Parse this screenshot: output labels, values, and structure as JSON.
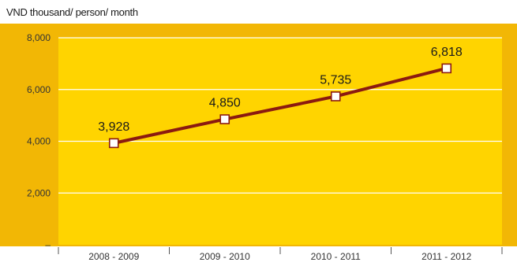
{
  "chart_data": {
    "type": "line",
    "unit_label": "VND thousand/ person/ month",
    "categories": [
      "2008 - 2009",
      "2009 - 2010",
      "2010 - 2011",
      "2011 - 2012"
    ],
    "series": [
      {
        "values": [
          3928,
          4850,
          5735,
          6818
        ],
        "data_labels": [
          "3,928",
          "4,850",
          "5,735",
          "6,818"
        ]
      }
    ],
    "ylim": [
      0,
      8000
    ],
    "y_ticks": [
      0,
      2000,
      4000,
      6000,
      8000
    ],
    "y_tick_labels": [
      "–",
      "2,000",
      "4,000",
      "6,000",
      "8,000"
    ],
    "grid": true,
    "colors": {
      "plot_background": "#FFD400",
      "page_background": "#F2B705",
      "line": "#8B1A10",
      "marker_fill": "#FFFFFF",
      "gridline": "#FFFFFF"
    }
  }
}
